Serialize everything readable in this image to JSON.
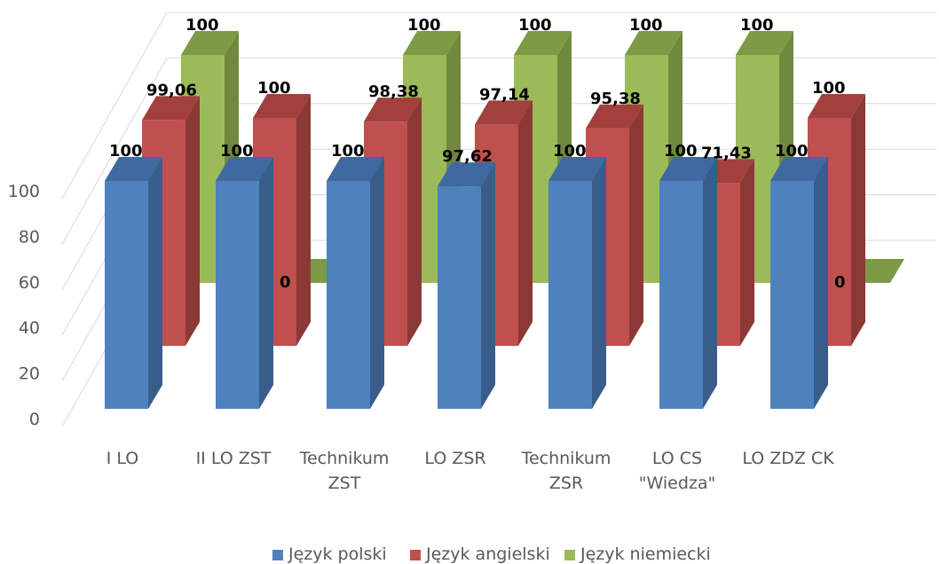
{
  "chart_data": {
    "type": "bar",
    "categories": [
      [
        "I LO"
      ],
      [
        "II LO ZST"
      ],
      [
        "Technikum",
        "ZST"
      ],
      [
        "LO ZSR"
      ],
      [
        "Technikum",
        "ZSR"
      ],
      [
        "LO CS",
        "\"Wiedza\""
      ],
      [
        "LO ZDZ CK"
      ]
    ],
    "series": [
      {
        "name": "Język polski",
        "values": [
          100,
          100,
          100,
          97.62,
          100,
          100,
          100
        ],
        "labels": [
          "100",
          "100",
          "100",
          "97,62",
          "100",
          "100",
          "100"
        ]
      },
      {
        "name": "Język angielski",
        "values": [
          99.06,
          100,
          98.38,
          97.14,
          95.38,
          71.43,
          100
        ],
        "labels": [
          "99,06",
          "100",
          "98,38",
          "97,14",
          "95,38",
          "71,43",
          "100"
        ]
      },
      {
        "name": "Język niemiecki",
        "values": [
          100,
          0,
          100,
          100,
          100,
          100,
          0
        ],
        "labels": [
          "100",
          "0",
          "100",
          "100",
          "100",
          "100",
          "0"
        ]
      }
    ],
    "yticks": [
      "0",
      "20",
      "40",
      "60",
      "80",
      "100"
    ],
    "ylim": [
      0,
      100
    ],
    "grid": true,
    "legend_position": "bottom"
  },
  "colors": {
    "polski": {
      "front": "#4f81bd",
      "side": "#385d8a",
      "top": "#3e6aa1"
    },
    "angielski": {
      "front": "#c0504d",
      "side": "#8c3836",
      "top": "#a2403d"
    },
    "niemiecki": {
      "front": "#9bbb59",
      "side": "#71893f",
      "top": "#7d9a45"
    },
    "grid": "#d9d9d9"
  }
}
